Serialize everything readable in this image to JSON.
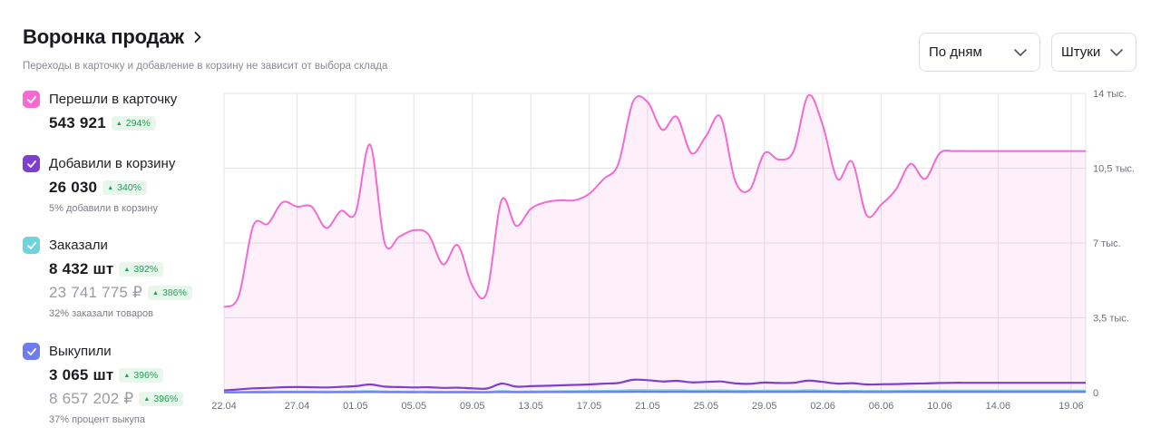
{
  "header": {
    "title": "Воронка продаж",
    "subtitle": "Переходы в карточку и добавление в корзину не зависит от выбора склада"
  },
  "controls": {
    "period": "По дням",
    "units": "Штуки"
  },
  "metrics": [
    {
      "label": "Перешли в карточку",
      "value": "543 921",
      "change": "294%",
      "color": "#f46ad2"
    },
    {
      "label": "Добавили в корзину",
      "value": "26 030",
      "change": "340%",
      "note": "5% добавили в корзину",
      "color": "#7e3fd0"
    },
    {
      "label": "Заказали",
      "value": "8 432 шт",
      "change": "392%",
      "value2": "23 741 775 ₽",
      "change2": "386%",
      "note": "32% заказали товаров",
      "color": "#6fd3dc"
    },
    {
      "label": "Выкупили",
      "value": "3 065 шт",
      "change": "396%",
      "value2": "8 657 202 ₽",
      "change2": "396%",
      "note": "37% процент выкупа",
      "color": "#6e7cf0"
    }
  ],
  "chart_data": {
    "type": "area",
    "x": [
      "22.04",
      "23.04",
      "24.04",
      "25.04",
      "26.04",
      "27.04",
      "28.04",
      "29.04",
      "30.04",
      "01.05",
      "02.05",
      "03.05",
      "04.05",
      "05.05",
      "06.05",
      "07.05",
      "08.05",
      "09.05",
      "10.05",
      "11.05",
      "12.05",
      "13.05",
      "14.05",
      "15.05",
      "16.05",
      "17.05",
      "18.05",
      "19.05",
      "20.05",
      "21.05",
      "22.05",
      "23.05",
      "24.05",
      "25.05",
      "26.05",
      "27.05",
      "28.05",
      "29.05",
      "30.05",
      "31.05",
      "01.06",
      "02.06",
      "03.06",
      "04.06",
      "05.06",
      "06.06",
      "07.06",
      "08.06",
      "09.06",
      "10.06",
      "11.06",
      "12.06",
      "13.06",
      "14.06",
      "15.06",
      "16.06",
      "17.06",
      "18.06",
      "19.06",
      "20.06"
    ],
    "xticks": [
      "22.04",
      "27.04",
      "01.05",
      "05.05",
      "09.05",
      "13.05",
      "17.05",
      "21.05",
      "25.05",
      "29.05",
      "02.06",
      "06.06",
      "10.06",
      "14.06",
      "19.06"
    ],
    "yticks": [
      "0",
      "3,5 тыс.",
      "7 тыс.",
      "10,5 тыс.",
      "14 тыс."
    ],
    "ylim": [
      0,
      14000
    ],
    "grid": true,
    "series": [
      {
        "name": "Перешли в карточку",
        "color": "#f46ad2",
        "fill": true,
        "values": [
          4000,
          4500,
          7800,
          7900,
          8900,
          8700,
          8700,
          7700,
          8500,
          8400,
          11600,
          7000,
          7300,
          7600,
          7400,
          6000,
          6900,
          5000,
          4700,
          9000,
          7800,
          8600,
          8900,
          9000,
          9000,
          9300,
          10000,
          10700,
          13600,
          13600,
          12300,
          12900,
          11200,
          12000,
          12900,
          9900,
          9500,
          11200,
          10900,
          11300,
          13900,
          12500,
          10000,
          10800,
          8300,
          8800,
          9500,
          10700,
          10000,
          11200,
          11300,
          11300,
          11300,
          11300,
          11300,
          11300,
          11300,
          11300,
          11300,
          11300
        ]
      },
      {
        "name": "Добавили в корзину",
        "color": "#7e3fd0",
        "values": [
          100,
          150,
          200,
          220,
          250,
          260,
          250,
          240,
          270,
          300,
          380,
          280,
          260,
          240,
          250,
          220,
          230,
          200,
          190,
          420,
          280,
          300,
          320,
          340,
          360,
          380,
          420,
          450,
          600,
          580,
          520,
          550,
          480,
          500,
          520,
          430,
          410,
          470,
          450,
          460,
          560,
          500,
          420,
          440,
          380,
          390,
          400,
          420,
          430,
          450,
          460,
          460,
          460,
          460,
          460,
          460,
          460,
          460,
          460,
          460
        ]
      },
      {
        "name": "Заказали",
        "color": "#6fd3dc",
        "values": [
          20,
          30,
          40,
          45,
          50,
          50,
          50,
          45,
          50,
          60,
          70,
          55,
          50,
          45,
          48,
          40,
          42,
          38,
          35,
          70,
          50,
          55,
          60,
          65,
          70,
          75,
          80,
          90,
          110,
          105,
          100,
          105,
          95,
          98,
          100,
          85,
          80,
          90,
          88,
          90,
          105,
          95,
          80,
          85,
          75,
          78,
          80,
          85,
          88,
          90,
          90,
          90,
          90,
          90,
          90,
          90,
          90,
          90,
          90,
          90
        ]
      },
      {
        "name": "Выкупили",
        "color": "#6e7cf0",
        "values": [
          10,
          12,
          15,
          18,
          20,
          20,
          20,
          18,
          20,
          22,
          28,
          22,
          20,
          18,
          19,
          16,
          17,
          15,
          14,
          28,
          20,
          22,
          24,
          26,
          28,
          30,
          32,
          36,
          44,
          42,
          40,
          42,
          38,
          39,
          40,
          34,
          32,
          36,
          35,
          36,
          42,
          38,
          32,
          34,
          30,
          31,
          32,
          34,
          35,
          36,
          36,
          36,
          36,
          36,
          36,
          36,
          36,
          36,
          36,
          36
        ]
      }
    ]
  }
}
